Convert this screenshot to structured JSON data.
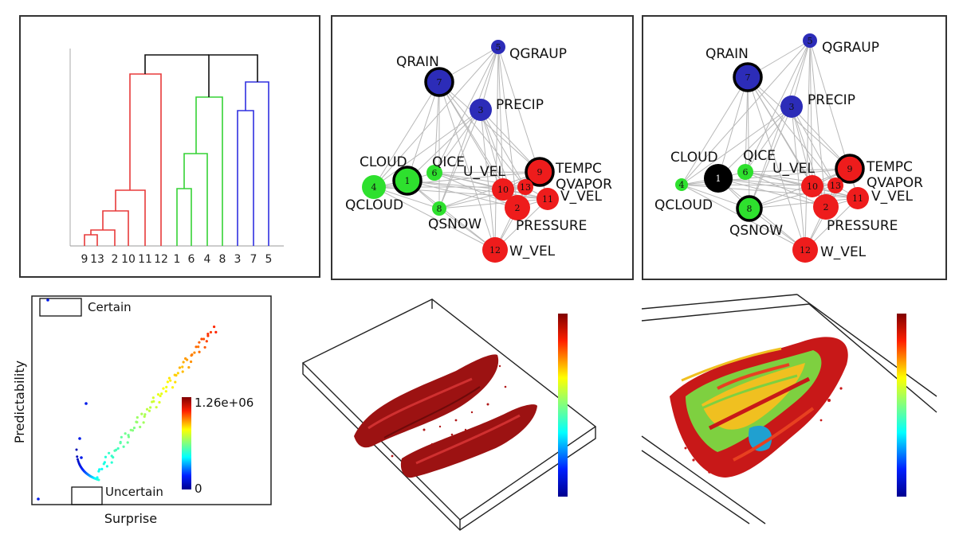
{
  "dendrogram": {
    "leaf_labels": [
      "9",
      "13",
      "2",
      "10",
      "11",
      "12",
      "1",
      "6",
      "4",
      "8",
      "3",
      "7",
      "5"
    ],
    "colors": {
      "red": "#e83a3a",
      "green": "#35d235",
      "blue": "#3030e0",
      "root": "#111111"
    }
  },
  "graph": {
    "node_colors": {
      "green": "#2ee02e",
      "red": "#ee1c1c",
      "blue": "#2c2cb8",
      "black": "#000000"
    },
    "nodes": [
      {
        "num": "1",
        "label": "CLOUD"
      },
      {
        "num": "2",
        "label": "PRESSURE"
      },
      {
        "num": "3",
        "label": "PRECIP"
      },
      {
        "num": "4",
        "label": "QCLOUD"
      },
      {
        "num": "5",
        "label": "QGRAUP"
      },
      {
        "num": "6",
        "label": "QICE"
      },
      {
        "num": "7",
        "label": "QRAIN"
      },
      {
        "num": "8",
        "label": "QSNOW"
      },
      {
        "num": "9",
        "label": "TEMPC"
      },
      {
        "num": "10",
        "label": "U_VEL"
      },
      {
        "num": "11",
        "label": "V_VEL"
      },
      {
        "num": "12",
        "label": "W_VEL"
      },
      {
        "num": "13",
        "label": "QVAPOR"
      }
    ]
  },
  "scatter": {
    "ylabel": "Predictability",
    "xlabel": "Surprise",
    "certain_label": "Certain",
    "uncertain_label": "Uncertain",
    "colorbar_max": "1.26e+06",
    "colorbar_min": "0"
  },
  "volume_left": {
    "color": "#a01010"
  },
  "volume_right": {
    "colors": [
      "#c81818",
      "#e84020",
      "#f0c020",
      "#7ed040",
      "#20a0d0"
    ]
  }
}
